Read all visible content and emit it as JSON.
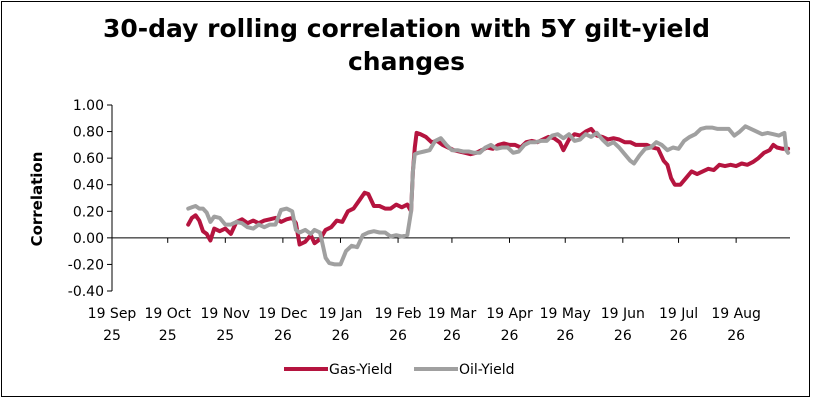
{
  "chart_data": {
    "type": "line",
    "title_line1": "30-day rolling correlation with 5Y gilt-yield",
    "title_line2": "changes",
    "ylabel": "Correlation",
    "xlabel": "",
    "ylim": [
      -0.4,
      1.0
    ],
    "yticks": [
      "-0.40",
      "-0.20",
      "0.00",
      "0.20",
      "0.40",
      "0.60",
      "0.80",
      "1.00"
    ],
    "ytick_values": [
      -0.4,
      -0.2,
      0.0,
      0.2,
      0.4,
      0.6,
      0.8,
      1.0
    ],
    "xlim": [
      "2019-09-25",
      "2020-09-24"
    ],
    "xticks": [
      {
        "date": "2019-09-25",
        "line1": "19 Sep",
        "line2": "25"
      },
      {
        "date": "2019-10-25",
        "line1": "19 Oct",
        "line2": "25"
      },
      {
        "date": "2019-11-25",
        "line1": "19 Nov",
        "line2": "25"
      },
      {
        "date": "2019-12-26",
        "line1": "19 Dec",
        "line2": "26"
      },
      {
        "date": "2020-01-26",
        "line1": "19 Jan",
        "line2": "26"
      },
      {
        "date": "2020-02-26",
        "line1": "19 Feb",
        "line2": "26"
      },
      {
        "date": "2020-03-26",
        "line1": "19 Mar",
        "line2": "26"
      },
      {
        "date": "2020-04-26",
        "line1": "19 Apr",
        "line2": "26"
      },
      {
        "date": "2020-05-26",
        "line1": "19 May",
        "line2": "26"
      },
      {
        "date": "2020-06-26",
        "line1": "19 Jun",
        "line2": "26"
      },
      {
        "date": "2020-07-26",
        "line1": "19 Jul",
        "line2": "26"
      },
      {
        "date": "2020-08-26",
        "line1": "19 Aug",
        "line2": "26"
      }
    ],
    "grid": false,
    "legend_position": "bottom",
    "series": [
      {
        "name": "Gas-Yield",
        "color": "#b5143f",
        "points": [
          [
            "2019-11-05",
            0.1
          ],
          [
            "2019-11-07",
            0.15
          ],
          [
            "2019-11-09",
            0.17
          ],
          [
            "2019-11-11",
            0.13
          ],
          [
            "2019-11-13",
            0.05
          ],
          [
            "2019-11-15",
            0.03
          ],
          [
            "2019-11-17",
            -0.02
          ],
          [
            "2019-11-19",
            0.07
          ],
          [
            "2019-11-22",
            0.05
          ],
          [
            "2019-11-25",
            0.07
          ],
          [
            "2019-11-28",
            0.03
          ],
          [
            "2019-12-01",
            0.12
          ],
          [
            "2019-12-04",
            0.14
          ],
          [
            "2019-12-07",
            0.11
          ],
          [
            "2019-12-10",
            0.13
          ],
          [
            "2019-12-13",
            0.11
          ],
          [
            "2019-12-16",
            0.13
          ],
          [
            "2019-12-19",
            0.14
          ],
          [
            "2019-12-22",
            0.15
          ],
          [
            "2019-12-25",
            0.12
          ],
          [
            "2019-12-28",
            0.14
          ],
          [
            "2019-12-31",
            0.15
          ],
          [
            "2020-01-02",
            0.11
          ],
          [
            "2020-01-04",
            -0.05
          ],
          [
            "2020-01-07",
            -0.03
          ],
          [
            "2020-01-10",
            0.02
          ],
          [
            "2020-01-12",
            -0.04
          ],
          [
            "2020-01-15",
            -0.01
          ],
          [
            "2020-01-18",
            0.06
          ],
          [
            "2020-01-21",
            0.08
          ],
          [
            "2020-01-24",
            0.13
          ],
          [
            "2020-01-27",
            0.12
          ],
          [
            "2020-01-30",
            0.2
          ],
          [
            "2020-02-02",
            0.22
          ],
          [
            "2020-02-05",
            0.28
          ],
          [
            "2020-02-08",
            0.34
          ],
          [
            "2020-02-10",
            0.33
          ],
          [
            "2020-02-13",
            0.24
          ],
          [
            "2020-02-16",
            0.24
          ],
          [
            "2020-02-19",
            0.22
          ],
          [
            "2020-02-22",
            0.22
          ],
          [
            "2020-02-25",
            0.25
          ],
          [
            "2020-02-28",
            0.23
          ],
          [
            "2020-03-02",
            0.25
          ],
          [
            "2020-03-04",
            0.2
          ],
          [
            "2020-03-05",
            0.5
          ],
          [
            "2020-03-06",
            0.68
          ],
          [
            "2020-03-07",
            0.79
          ],
          [
            "2020-03-09",
            0.78
          ],
          [
            "2020-03-12",
            0.76
          ],
          [
            "2020-03-15",
            0.72
          ],
          [
            "2020-03-18",
            0.73
          ],
          [
            "2020-03-21",
            0.7
          ],
          [
            "2020-03-24",
            0.68
          ],
          [
            "2020-03-27",
            0.66
          ],
          [
            "2020-03-30",
            0.65
          ],
          [
            "2020-04-02",
            0.64
          ],
          [
            "2020-04-05",
            0.63
          ],
          [
            "2020-04-08",
            0.64
          ],
          [
            "2020-04-11",
            0.66
          ],
          [
            "2020-04-14",
            0.68
          ],
          [
            "2020-04-17",
            0.67
          ],
          [
            "2020-04-20",
            0.7
          ],
          [
            "2020-04-23",
            0.71
          ],
          [
            "2020-04-26",
            0.7
          ],
          [
            "2020-04-29",
            0.7
          ],
          [
            "2020-05-02",
            0.68
          ],
          [
            "2020-05-05",
            0.72
          ],
          [
            "2020-05-08",
            0.73
          ],
          [
            "2020-05-11",
            0.72
          ],
          [
            "2020-05-14",
            0.74
          ],
          [
            "2020-05-17",
            0.76
          ],
          [
            "2020-05-20",
            0.75
          ],
          [
            "2020-05-23",
            0.72
          ],
          [
            "2020-05-25",
            0.66
          ],
          [
            "2020-05-28",
            0.74
          ],
          [
            "2020-05-31",
            0.78
          ],
          [
            "2020-06-03",
            0.77
          ],
          [
            "2020-06-06",
            0.8
          ],
          [
            "2020-06-09",
            0.82
          ],
          [
            "2020-06-12",
            0.77
          ],
          [
            "2020-06-15",
            0.76
          ],
          [
            "2020-06-18",
            0.74
          ],
          [
            "2020-06-21",
            0.75
          ],
          [
            "2020-06-24",
            0.74
          ],
          [
            "2020-06-27",
            0.72
          ],
          [
            "2020-06-30",
            0.72
          ],
          [
            "2020-07-03",
            0.7
          ],
          [
            "2020-07-06",
            0.7
          ],
          [
            "2020-07-09",
            0.7
          ],
          [
            "2020-07-12",
            0.68
          ],
          [
            "2020-07-15",
            0.67
          ],
          [
            "2020-07-18",
            0.58
          ],
          [
            "2020-07-20",
            0.55
          ],
          [
            "2020-07-22",
            0.45
          ],
          [
            "2020-07-24",
            0.4
          ],
          [
            "2020-07-27",
            0.4
          ],
          [
            "2020-07-30",
            0.45
          ],
          [
            "2020-08-02",
            0.5
          ],
          [
            "2020-08-05",
            0.48
          ],
          [
            "2020-08-08",
            0.5
          ],
          [
            "2020-08-11",
            0.52
          ],
          [
            "2020-08-14",
            0.51
          ],
          [
            "2020-08-17",
            0.55
          ],
          [
            "2020-08-20",
            0.54
          ],
          [
            "2020-08-23",
            0.55
          ],
          [
            "2020-08-26",
            0.54
          ],
          [
            "2020-08-29",
            0.56
          ],
          [
            "2020-09-01",
            0.55
          ],
          [
            "2020-09-04",
            0.57
          ],
          [
            "2020-09-07",
            0.6
          ],
          [
            "2020-09-10",
            0.64
          ],
          [
            "2020-09-13",
            0.66
          ],
          [
            "2020-09-15",
            0.7
          ],
          [
            "2020-09-17",
            0.68
          ],
          [
            "2020-09-20",
            0.67
          ],
          [
            "2020-09-23",
            0.67
          ]
        ]
      },
      {
        "name": "Oil-Yield",
        "color": "#a0a0a0",
        "points": [
          [
            "2019-11-05",
            0.22
          ],
          [
            "2019-11-07",
            0.23
          ],
          [
            "2019-11-09",
            0.24
          ],
          [
            "2019-11-11",
            0.22
          ],
          [
            "2019-11-13",
            0.22
          ],
          [
            "2019-11-15",
            0.19
          ],
          [
            "2019-11-17",
            0.12
          ],
          [
            "2019-11-19",
            0.16
          ],
          [
            "2019-11-22",
            0.15
          ],
          [
            "2019-11-25",
            0.1
          ],
          [
            "2019-11-28",
            0.1
          ],
          [
            "2019-12-01",
            0.12
          ],
          [
            "2019-12-04",
            0.11
          ],
          [
            "2019-12-07",
            0.08
          ],
          [
            "2019-12-10",
            0.07
          ],
          [
            "2019-12-13",
            0.1
          ],
          [
            "2019-12-16",
            0.08
          ],
          [
            "2019-12-19",
            0.1
          ],
          [
            "2019-12-22",
            0.1
          ],
          [
            "2019-12-25",
            0.21
          ],
          [
            "2019-12-28",
            0.22
          ],
          [
            "2019-12-31",
            0.2
          ],
          [
            "2020-01-02",
            0.06
          ],
          [
            "2020-01-04",
            0.04
          ],
          [
            "2020-01-07",
            0.06
          ],
          [
            "2020-01-10",
            0.03
          ],
          [
            "2020-01-12",
            0.06
          ],
          [
            "2020-01-15",
            0.04
          ],
          [
            "2020-01-18",
            -0.15
          ],
          [
            "2020-01-20",
            -0.19
          ],
          [
            "2020-01-23",
            -0.2
          ],
          [
            "2020-01-26",
            -0.2
          ],
          [
            "2020-01-29",
            -0.1
          ],
          [
            "2020-02-01",
            -0.06
          ],
          [
            "2020-02-04",
            -0.07
          ],
          [
            "2020-02-07",
            0.02
          ],
          [
            "2020-02-10",
            0.04
          ],
          [
            "2020-02-13",
            0.05
          ],
          [
            "2020-02-16",
            0.04
          ],
          [
            "2020-02-19",
            0.04
          ],
          [
            "2020-02-22",
            0.01
          ],
          [
            "2020-02-25",
            0.02
          ],
          [
            "2020-02-28",
            0.01
          ],
          [
            "2020-03-02",
            0.02
          ],
          [
            "2020-03-04",
            0.2
          ],
          [
            "2020-03-05",
            0.5
          ],
          [
            "2020-03-06",
            0.63
          ],
          [
            "2020-03-08",
            0.64
          ],
          [
            "2020-03-11",
            0.65
          ],
          [
            "2020-03-14",
            0.66
          ],
          [
            "2020-03-17",
            0.73
          ],
          [
            "2020-03-20",
            0.75
          ],
          [
            "2020-03-23",
            0.7
          ],
          [
            "2020-03-26",
            0.66
          ],
          [
            "2020-03-29",
            0.66
          ],
          [
            "2020-04-01",
            0.65
          ],
          [
            "2020-04-04",
            0.65
          ],
          [
            "2020-04-07",
            0.64
          ],
          [
            "2020-04-10",
            0.64
          ],
          [
            "2020-04-13",
            0.68
          ],
          [
            "2020-04-16",
            0.7
          ],
          [
            "2020-04-19",
            0.67
          ],
          [
            "2020-04-22",
            0.68
          ],
          [
            "2020-04-25",
            0.68
          ],
          [
            "2020-04-28",
            0.64
          ],
          [
            "2020-05-01",
            0.65
          ],
          [
            "2020-05-04",
            0.7
          ],
          [
            "2020-05-07",
            0.72
          ],
          [
            "2020-05-10",
            0.72
          ],
          [
            "2020-05-13",
            0.73
          ],
          [
            "2020-05-16",
            0.73
          ],
          [
            "2020-05-19",
            0.77
          ],
          [
            "2020-05-22",
            0.78
          ],
          [
            "2020-05-25",
            0.75
          ],
          [
            "2020-05-28",
            0.78
          ],
          [
            "2020-05-31",
            0.73
          ],
          [
            "2020-06-03",
            0.74
          ],
          [
            "2020-06-06",
            0.78
          ],
          [
            "2020-06-09",
            0.76
          ],
          [
            "2020-06-12",
            0.79
          ],
          [
            "2020-06-15",
            0.74
          ],
          [
            "2020-06-18",
            0.7
          ],
          [
            "2020-06-21",
            0.72
          ],
          [
            "2020-06-24",
            0.68
          ],
          [
            "2020-06-27",
            0.63
          ],
          [
            "2020-06-30",
            0.58
          ],
          [
            "2020-07-02",
            0.56
          ],
          [
            "2020-07-05",
            0.62
          ],
          [
            "2020-07-08",
            0.67
          ],
          [
            "2020-07-11",
            0.68
          ],
          [
            "2020-07-14",
            0.72
          ],
          [
            "2020-07-17",
            0.7
          ],
          [
            "2020-07-20",
            0.66
          ],
          [
            "2020-07-23",
            0.68
          ],
          [
            "2020-07-26",
            0.67
          ],
          [
            "2020-07-29",
            0.73
          ],
          [
            "2020-08-01",
            0.76
          ],
          [
            "2020-08-04",
            0.78
          ],
          [
            "2020-08-07",
            0.82
          ],
          [
            "2020-08-10",
            0.83
          ],
          [
            "2020-08-13",
            0.83
          ],
          [
            "2020-08-16",
            0.82
          ],
          [
            "2020-08-19",
            0.82
          ],
          [
            "2020-08-22",
            0.82
          ],
          [
            "2020-08-25",
            0.77
          ],
          [
            "2020-08-28",
            0.8
          ],
          [
            "2020-08-31",
            0.84
          ],
          [
            "2020-09-03",
            0.82
          ],
          [
            "2020-09-06",
            0.8
          ],
          [
            "2020-09-09",
            0.78
          ],
          [
            "2020-09-12",
            0.79
          ],
          [
            "2020-09-15",
            0.78
          ],
          [
            "2020-09-18",
            0.77
          ],
          [
            "2020-09-21",
            0.79
          ],
          [
            "2020-09-22",
            0.66
          ],
          [
            "2020-09-23",
            0.64
          ]
        ]
      }
    ]
  }
}
